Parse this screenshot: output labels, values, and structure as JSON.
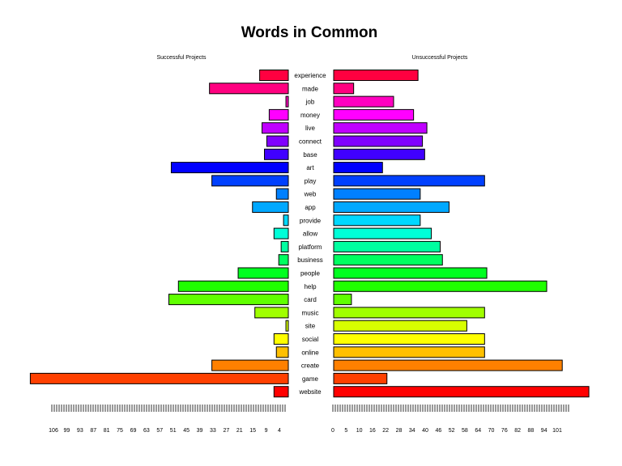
{
  "chart_data": {
    "type": "bar",
    "title": "Words in Common",
    "orientation": "horizontal-pyramid",
    "categories": [
      "experience",
      "made",
      "job",
      "money",
      "live",
      "connect",
      "base",
      "art",
      "play",
      "web",
      "app",
      "provide",
      "allow",
      "platform",
      "business",
      "people",
      "help",
      "card",
      "music",
      "site",
      "social",
      "online",
      "create",
      "game",
      "website"
    ],
    "colors": [
      "#FF0040",
      "#FF0080",
      "#FF00C0",
      "#FF00FF",
      "#C000FF",
      "#8000FF",
      "#4000FF",
      "#0000FF",
      "#0040FF",
      "#0080FF",
      "#00A8FF",
      "#00D8FF",
      "#00FFD8",
      "#00FFA0",
      "#00FF60",
      "#00FF20",
      "#20FF00",
      "#60FF00",
      "#A0FF00",
      "#D8FF00",
      "#FFFF00",
      "#FFC000",
      "#FF8000",
      "#FF4000",
      "#FF0000"
    ],
    "series": [
      {
        "name": "Successful Projects",
        "values": [
          12,
          33,
          1,
          8,
          11,
          9,
          10,
          49,
          32,
          5,
          15,
          2,
          6,
          3,
          4,
          21,
          46,
          50,
          14,
          1,
          6,
          5,
          32,
          108,
          6
        ]
      },
      {
        "name": "Unsuccessful Projects",
        "values": [
          38,
          9,
          27,
          36,
          42,
          40,
          41,
          22,
          68,
          39,
          52,
          39,
          44,
          48,
          49,
          69,
          96,
          8,
          68,
          60,
          68,
          68,
          103,
          24,
          115
        ]
      }
    ],
    "left_axis": {
      "range": [
        108,
        0
      ],
      "tick_labels": [
        "106",
        "99",
        "93",
        "87",
        "81",
        "75",
        "69",
        "63",
        "57",
        "51",
        "45",
        "39",
        "33",
        "27",
        "21",
        "15",
        "9",
        "4"
      ]
    },
    "right_axis": {
      "range": [
        0,
        115
      ],
      "tick_labels": [
        "0",
        "5",
        "10",
        "16",
        "22",
        "28",
        "34",
        "40",
        "46",
        "52",
        "58",
        "64",
        "70",
        "76",
        "82",
        "88",
        "94",
        "101"
      ]
    }
  }
}
